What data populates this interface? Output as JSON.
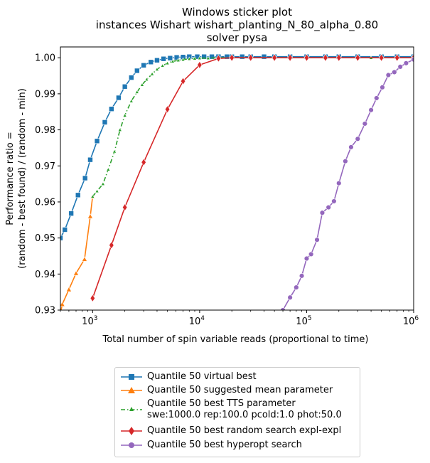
{
  "chart_data": {
    "type": "line",
    "title_lines": [
      "Windows sticker plot",
      "instances Wishart wishart_planting_N_80_alpha_0.80",
      "solver pysa"
    ],
    "xlabel": "Total number of spin variable reads (proportional to time)",
    "ylabel_lines": [
      "Performance ratio =",
      "(random - best found) / (random - min)"
    ],
    "xscale": "log",
    "xlim": [
      500,
      1000000
    ],
    "ylim": [
      0.93,
      1.003
    ],
    "xticks": [
      {
        "value": 1000,
        "base": "10",
        "exp": "3"
      },
      {
        "value": 10000,
        "base": "10",
        "exp": "4"
      },
      {
        "value": 100000,
        "base": "10",
        "exp": "5"
      },
      {
        "value": 1000000,
        "base": "10",
        "exp": "6"
      }
    ],
    "yticks": [
      "0.93",
      "0.94",
      "0.95",
      "0.96",
      "0.97",
      "0.98",
      "0.99",
      "1.00"
    ],
    "ytick_values": [
      0.93,
      0.94,
      0.95,
      0.96,
      0.97,
      0.98,
      0.99,
      1.0
    ],
    "legend_placement": "below",
    "series": [
      {
        "name": "Quantile 50 virtual best",
        "color": "#1f77b4",
        "marker": "square",
        "dash": "",
        "x": [
          500,
          550,
          630,
          730,
          850,
          950,
          1100,
          1300,
          1500,
          1750,
          2000,
          2300,
          2600,
          3000,
          3500,
          4000,
          4600,
          5300,
          6100,
          7000,
          8000,
          9500,
          11000,
          13000,
          15000,
          18000,
          20000,
          25000,
          30000,
          40000,
          50000,
          70000,
          100000,
          150000,
          200000,
          300000,
          500000,
          700000,
          1000000
        ],
        "y": [
          0.95,
          0.9523,
          0.9568,
          0.9619,
          0.9666,
          0.9717,
          0.9769,
          0.9821,
          0.9858,
          0.9889,
          0.992,
          0.9945,
          0.9964,
          0.9979,
          0.9988,
          0.9993,
          0.9997,
          0.9999,
          1.0001,
          1.0002,
          1.0003,
          1.0003,
          1.0003,
          1.0003,
          1.0003,
          1.0003,
          1.0003,
          1.0003,
          1.0003,
          1.0003,
          1.0003,
          1.0003,
          1.0003,
          1.0003,
          1.0003,
          1.0003,
          1.0003,
          1.0003,
          1.0003
        ]
      },
      {
        "name": "Quantile 50 suggested mean parameter",
        "color": "#ff7f0e",
        "marker": "triangle",
        "dash": "",
        "x": [
          500,
          520,
          600,
          700,
          840,
          950,
          1000
        ],
        "y": [
          0.929,
          0.9316,
          0.9357,
          0.9402,
          0.9441,
          0.956,
          0.9615
        ]
      },
      {
        "name": "Quantile 50 best TTS parameter",
        "name_line2": "swe:1000.0 rep:100.0 pcold:1.0 phot:50.0",
        "color": "#2ca02c",
        "marker": "triangle",
        "dash": "6,3,1.5,3",
        "x": [
          1000,
          1100,
          1250,
          1400,
          1600,
          1800,
          2000,
          2300,
          2600,
          2900,
          3200,
          3600,
          4000,
          4500,
          5000,
          5600,
          6300,
          7000,
          8000,
          9000,
          10000,
          12000,
          15000,
          20000,
          30000,
          50000,
          100000,
          200000,
          400000,
          1000000
        ],
        "y": [
          0.9615,
          0.963,
          0.965,
          0.969,
          0.974,
          0.98,
          0.984,
          0.988,
          0.9905,
          0.9925,
          0.994,
          0.9955,
          0.9968,
          0.9978,
          0.9985,
          0.999,
          0.9993,
          0.9995,
          0.9997,
          0.9998,
          0.9999,
          0.9999,
          1.0,
          1.0,
          1.0,
          1.0,
          1.0,
          1.0,
          1.0,
          1.0
        ]
      },
      {
        "name": "Quantile 50  best random search expl-expl",
        "color": "#d62728",
        "marker": "diamond",
        "dash": "",
        "x": [
          1000,
          1500,
          2000,
          3000,
          5000,
          7000,
          10000,
          15000,
          20000,
          30000,
          50000,
          70000,
          100000,
          150000,
          200000,
          300000,
          500000,
          700000,
          1000000
        ],
        "y": [
          0.9333,
          0.948,
          0.9585,
          0.971,
          0.9857,
          0.9935,
          0.998,
          0.9998,
          1.0,
          1.0,
          1.0,
          1.0,
          1.0,
          1.0,
          1.0,
          1.0,
          1.0,
          1.0,
          1.0
        ]
      },
      {
        "name": "Quantile 50 best hyperopt search",
        "color": "#9467bd",
        "marker": "circle",
        "dash": "",
        "x": [
          60000,
          70000,
          80000,
          90000,
          100000,
          110000,
          125000,
          140000,
          160000,
          180000,
          200000,
          230000,
          260000,
          300000,
          350000,
          400000,
          450000,
          510000,
          580000,
          660000,
          750000,
          850000,
          1000000
        ],
        "y": [
          0.93,
          0.9335,
          0.9363,
          0.9395,
          0.9443,
          0.9455,
          0.9495,
          0.957,
          0.9585,
          0.9602,
          0.9652,
          0.9713,
          0.9752,
          0.9775,
          0.9817,
          0.9855,
          0.9888,
          0.9918,
          0.9952,
          0.996,
          0.9975,
          0.9985,
          0.9995
        ]
      }
    ]
  }
}
